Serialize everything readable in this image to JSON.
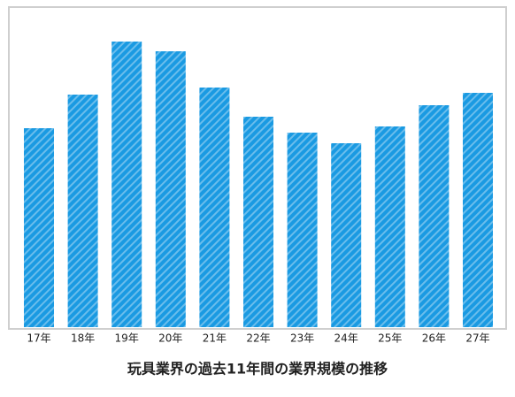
{
  "chart_data": {
    "type": "bar",
    "title": "玩具業界の過去11年間の業界規模の推移",
    "categories": [
      "17年",
      "18年",
      "19年",
      "20年",
      "21年",
      "22年",
      "23年",
      "24年",
      "25年",
      "26年",
      "27年"
    ],
    "values": [
      225,
      263,
      323,
      312,
      271,
      238,
      220,
      208,
      227,
      251,
      265
    ],
    "color": "#1a9ae2",
    "ylim": [
      0,
      360
    ]
  }
}
